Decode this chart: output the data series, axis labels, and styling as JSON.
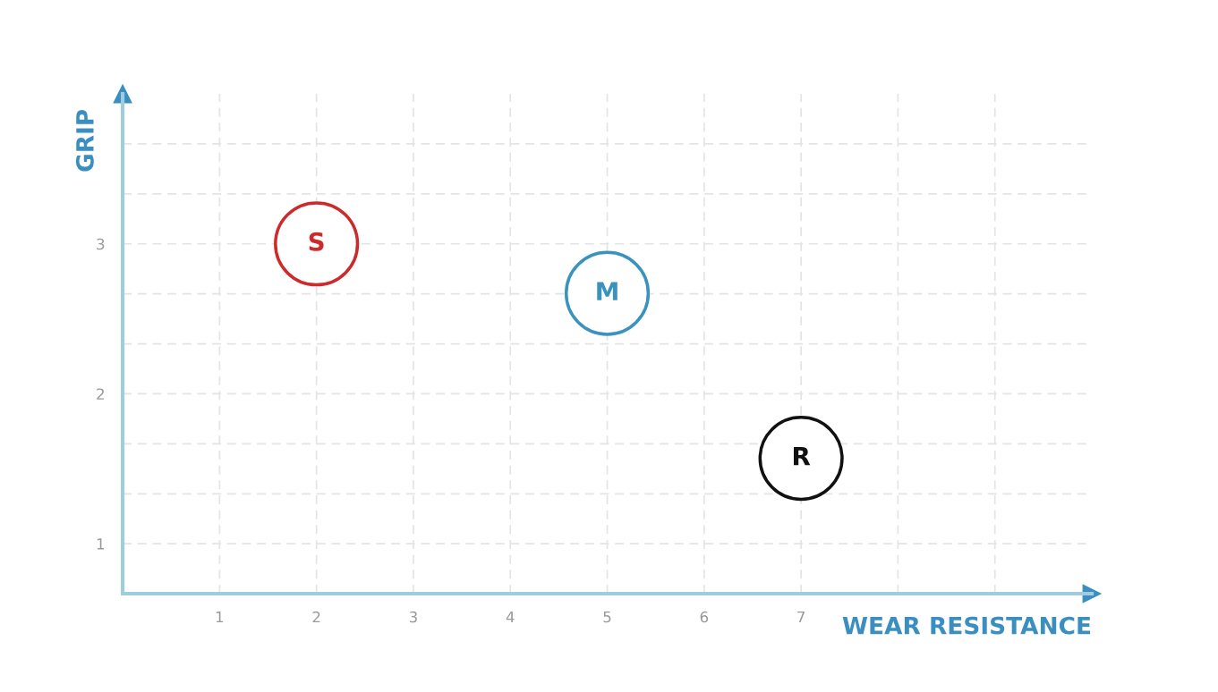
{
  "chart_data": {
    "type": "scatter",
    "xlabel": "WEAR RESISTANCE",
    "ylabel": "GRIP",
    "xlim": [
      0,
      10
    ],
    "ylim": [
      0.667,
      4
    ],
    "xticks": [
      1,
      2,
      3,
      4,
      5,
      6,
      7,
      {
        "value": 8,
        "label": null
      },
      {
        "value": 9,
        "label": null
      }
    ],
    "yticks": [
      1,
      {
        "value": 1.333,
        "label": null
      },
      {
        "value": 1.667,
        "label": null
      },
      2,
      {
        "value": 2.333,
        "label": null
      },
      {
        "value": 2.667,
        "label": null
      },
      3,
      {
        "value": 3.333,
        "label": null
      },
      {
        "value": 3.667,
        "label": null
      }
    ],
    "grid": true,
    "marker": "circle",
    "legend": false,
    "series": [
      {
        "name": "S",
        "color": "#cc2b2b",
        "x": [
          2
        ],
        "values": [
          3
        ]
      },
      {
        "name": "M",
        "color": "#3a93bf",
        "x": [
          5
        ],
        "values": [
          2.67
        ]
      },
      {
        "name": "R",
        "color": "#111111",
        "x": [
          7
        ],
        "values": [
          1.57
        ]
      }
    ]
  }
}
